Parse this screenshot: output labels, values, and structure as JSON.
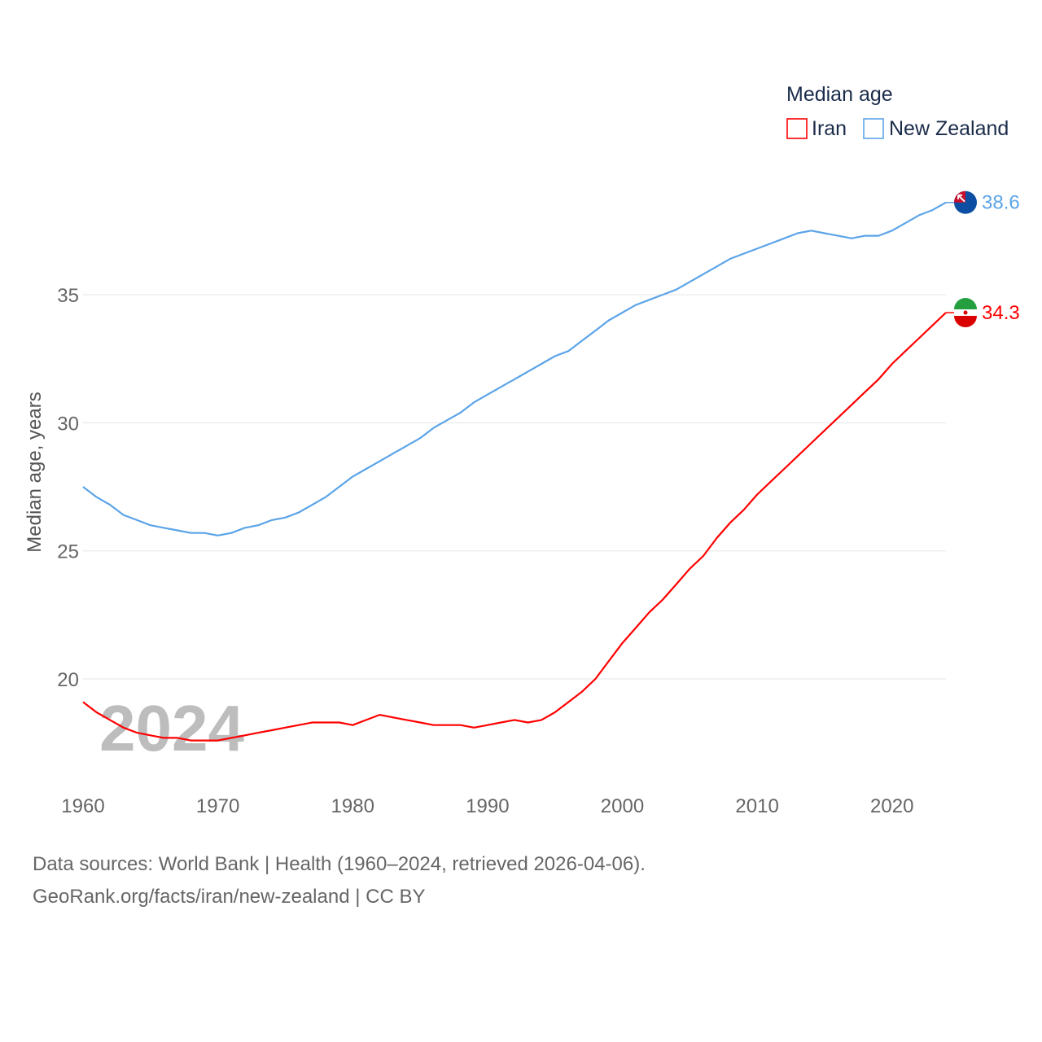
{
  "chart_data": {
    "type": "line",
    "title": "Median age",
    "xlabel": "",
    "ylabel": "Median age, years",
    "xlim": [
      1960,
      2024
    ],
    "ylim": [
      16.5,
      39.5
    ],
    "x_ticks": [
      1960,
      1970,
      1980,
      1990,
      2000,
      2010,
      2020
    ],
    "y_ticks": [
      20,
      25,
      30,
      35
    ],
    "grid": true,
    "legend_position": "top-right",
    "watermark_year": "2024",
    "x": [
      1960,
      1961,
      1962,
      1963,
      1964,
      1965,
      1966,
      1967,
      1968,
      1969,
      1970,
      1971,
      1972,
      1973,
      1974,
      1975,
      1976,
      1977,
      1978,
      1979,
      1980,
      1981,
      1982,
      1983,
      1984,
      1985,
      1986,
      1987,
      1988,
      1989,
      1990,
      1991,
      1992,
      1993,
      1994,
      1995,
      1996,
      1997,
      1998,
      1999,
      2000,
      2001,
      2002,
      2003,
      2004,
      2005,
      2006,
      2007,
      2008,
      2009,
      2010,
      2011,
      2012,
      2013,
      2014,
      2015,
      2016,
      2017,
      2018,
      2019,
      2020,
      2021,
      2022,
      2023,
      2024
    ],
    "series": [
      {
        "name": "Iran",
        "color": "#ff0000",
        "end_label": "34.3",
        "flag": "iran-flag",
        "values": [
          19.1,
          18.7,
          18.4,
          18.1,
          17.9,
          17.8,
          17.7,
          17.7,
          17.6,
          17.6,
          17.6,
          17.7,
          17.8,
          17.9,
          18.0,
          18.1,
          18.2,
          18.3,
          18.3,
          18.3,
          18.2,
          18.4,
          18.6,
          18.5,
          18.4,
          18.3,
          18.2,
          18.2,
          18.2,
          18.1,
          18.2,
          18.3,
          18.4,
          18.3,
          18.4,
          18.7,
          19.1,
          19.5,
          20.0,
          20.7,
          21.4,
          22.0,
          22.6,
          23.1,
          23.7,
          24.3,
          24.8,
          25.5,
          26.1,
          26.6,
          27.2,
          27.7,
          28.2,
          28.7,
          29.2,
          29.7,
          30.2,
          30.7,
          31.2,
          31.7,
          32.3,
          32.8,
          33.3,
          33.8,
          34.3
        ]
      },
      {
        "name": "New Zealand",
        "color": "#5ba4e8",
        "end_label": "38.6",
        "flag": "new-zealand-flag",
        "values": [
          27.5,
          27.1,
          26.8,
          26.4,
          26.2,
          26.0,
          25.9,
          25.8,
          25.7,
          25.7,
          25.6,
          25.7,
          25.9,
          26.0,
          26.2,
          26.3,
          26.5,
          26.8,
          27.1,
          27.5,
          27.9,
          28.2,
          28.5,
          28.8,
          29.1,
          29.4,
          29.8,
          30.1,
          30.4,
          30.8,
          31.1,
          31.4,
          31.7,
          32.0,
          32.3,
          32.6,
          32.8,
          33.2,
          33.6,
          34.0,
          34.3,
          34.6,
          34.8,
          35.0,
          35.2,
          35.5,
          35.8,
          36.1,
          36.4,
          36.6,
          36.8,
          37.0,
          37.2,
          37.4,
          37.5,
          37.4,
          37.3,
          37.2,
          37.3,
          37.3,
          37.5,
          37.8,
          38.1,
          38.3,
          38.6
        ]
      }
    ]
  },
  "footer": {
    "line1": "Data sources: World Bank | Health (1960–2024, retrieved 2026-04-06).",
    "line2": "GeoRank.org/facts/iran/new-zealand | CC BY"
  }
}
